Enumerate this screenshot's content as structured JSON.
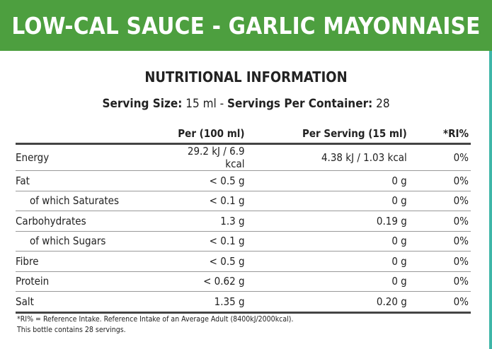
{
  "header": {
    "title": "LOW-CAL SAUCE - GARLIC MAYONNAISE",
    "color": "#4d9f3f"
  },
  "section_title": "NUTRITIONAL INFORMATION",
  "serving": {
    "size_label": "Serving Size:",
    "size_value": "15 ml -",
    "per_container_label": "Servings Per Container:",
    "per_container_value": "28"
  },
  "table": {
    "columns": [
      "",
      "Per (100 ml)",
      "Per Serving (15 ml)",
      "*RI%"
    ],
    "rows": [
      {
        "label": "Energy",
        "per100": "29.2 kJ / 6.9 kcal",
        "per_serving": "4.38 kJ / 1.03 kcal",
        "ri": "0%",
        "sub": false
      },
      {
        "label": "Fat",
        "per100": "< 0.5 g",
        "per_serving": "0 g",
        "ri": "0%",
        "sub": false
      },
      {
        "label": "of which Saturates",
        "per100": "< 0.1 g",
        "per_serving": "0 g",
        "ri": "0%",
        "sub": true
      },
      {
        "label": "Carbohydrates",
        "per100": "1.3 g",
        "per_serving": "0.19 g",
        "ri": "0%",
        "sub": false
      },
      {
        "label": "of which Sugars",
        "per100": "< 0.1 g",
        "per_serving": "0 g",
        "ri": "0%",
        "sub": true
      },
      {
        "label": "Fibre",
        "per100": "< 0.5 g",
        "per_serving": "0 g",
        "ri": "0%",
        "sub": false
      },
      {
        "label": "Protein",
        "per100": "< 0.62 g",
        "per_serving": "0 g",
        "ri": "0%",
        "sub": false
      },
      {
        "label": "Salt",
        "per100": "1.35 g",
        "per_serving": "0.20 g",
        "ri": "0%",
        "sub": false
      }
    ]
  },
  "footnotes": [
    "*RI% = Reference Intake. Reference Intake of an Average Adult (8400kJ/2000kcal).",
    "This bottle contains 28 servings."
  ]
}
